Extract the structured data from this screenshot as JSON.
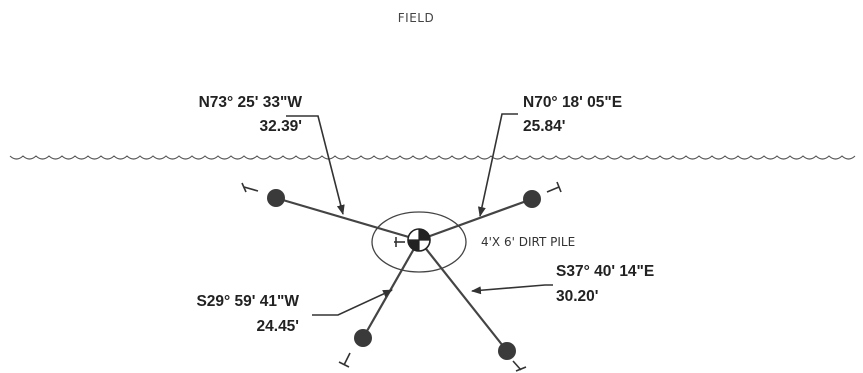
{
  "field_label": "FIELD",
  "pile_label": "4'X 6' DIRT PILE",
  "ties": [
    {
      "bearing": "N73° 25' 33\"W",
      "distance": "32.39'"
    },
    {
      "bearing": "N70° 18' 05\"E",
      "distance": "25.84'"
    },
    {
      "bearing": "S29° 59' 41\"W",
      "distance": "24.45'"
    },
    {
      "bearing": "S37° 40' 14\"E",
      "distance": "30.20'"
    }
  ]
}
